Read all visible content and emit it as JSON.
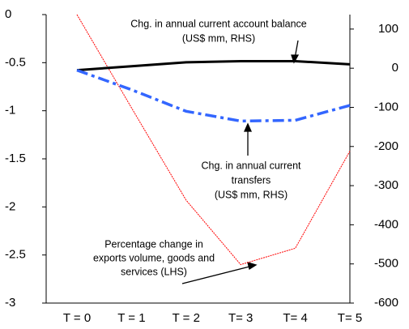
{
  "chart_data": {
    "type": "line",
    "categories": [
      "T = 0",
      "T = 1",
      "T = 2",
      "T= 3",
      "T= 4",
      "T= 5"
    ],
    "ylim": [
      -3,
      0
    ],
    "yticks": [
      0,
      -0.5,
      -1,
      -1.5,
      -2,
      -2.5,
      -3
    ],
    "y2lim": [
      -600,
      137
    ],
    "y2ticks": [
      100,
      0,
      -100,
      -200,
      -300,
      -400,
      -500,
      -600
    ],
    "series": [
      {
        "color": "#ff0000",
        "values": [
          0,
          -0.97,
          -1.93,
          -2.6,
          -2.43,
          -1.42
        ]
      },
      {
        "color": "#000000",
        "axis": "y2",
        "values": [
          -5,
          5,
          15,
          18,
          18,
          10
        ]
      },
      {
        "color": "#3366ff",
        "axis": "y2",
        "values": [
          -5,
          -55,
          -110,
          -135,
          -133,
          -95
        ]
      }
    ],
    "annotations": [
      {
        "lines": [
          "Chg. in annual current account balance",
          "(US$ mm, RHS)"
        ]
      },
      {
        "lines": [
          "Chg. in annual current",
          "transfers",
          "(US$ mm, RHS)"
        ]
      },
      {
        "lines": [
          "Percentage change in",
          "exports volume, goods and",
          "services (LHS)"
        ]
      }
    ]
  }
}
